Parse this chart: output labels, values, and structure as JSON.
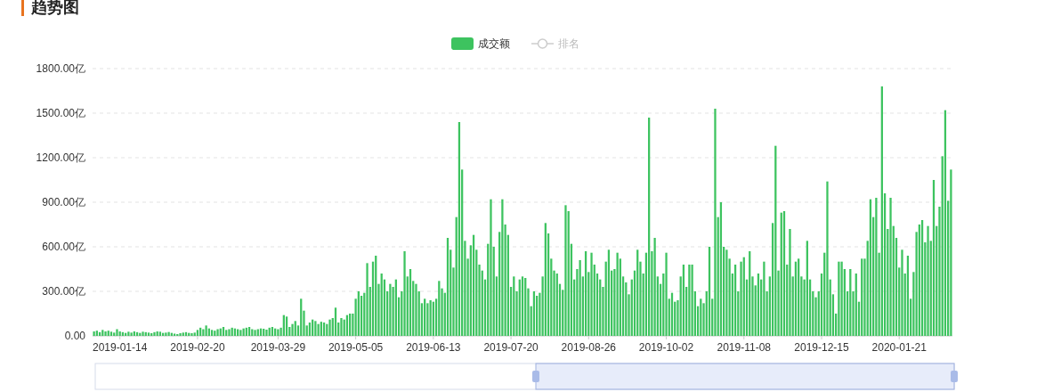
{
  "chart_data": {
    "type": "bar",
    "title": "趋势图",
    "categories": [
      null,
      null,
      null,
      null,
      null,
      null,
      null,
      null,
      null,
      "2019-01-14",
      null,
      null,
      null,
      null,
      null,
      null,
      null,
      null,
      null,
      null,
      null,
      null,
      null,
      null,
      null,
      null,
      null,
      null,
      null,
      null,
      null,
      null,
      null,
      null,
      null,
      null,
      "2019-02-20",
      null,
      null,
      null,
      null,
      null,
      null,
      null,
      null,
      null,
      null,
      null,
      null,
      null,
      null,
      null,
      null,
      null,
      null,
      null,
      null,
      null,
      null,
      null,
      null,
      null,
      null,
      null,
      "2019-03-29",
      null,
      null,
      null,
      null,
      null,
      null,
      null,
      null,
      null,
      null,
      null,
      null,
      null,
      null,
      null,
      null,
      null,
      null,
      null,
      null,
      null,
      null,
      null,
      null,
      null,
      null,
      "2019-05-05",
      null,
      null,
      null,
      null,
      null,
      null,
      null,
      null,
      null,
      null,
      null,
      null,
      null,
      null,
      null,
      null,
      null,
      null,
      null,
      null,
      null,
      null,
      null,
      null,
      null,
      null,
      "2019-06-13",
      null,
      null,
      null,
      null,
      null,
      null,
      null,
      null,
      null,
      null,
      null,
      null,
      null,
      null,
      null,
      null,
      null,
      null,
      null,
      null,
      null,
      null,
      null,
      null,
      null,
      null,
      "2019-07-20",
      null,
      null,
      null,
      null,
      null,
      null,
      null,
      null,
      null,
      null,
      null,
      null,
      null,
      null,
      null,
      null,
      null,
      null,
      null,
      null,
      null,
      null,
      null,
      null,
      null,
      null,
      "2019-08-26",
      null,
      null,
      null,
      null,
      null,
      null,
      null,
      null,
      null,
      null,
      null,
      null,
      null,
      null,
      null,
      null,
      null,
      null,
      null,
      null,
      null,
      null,
      null,
      null,
      null,
      null,
      "2019-10-02",
      null,
      null,
      null,
      null,
      null,
      null,
      null,
      null,
      null,
      null,
      null,
      null,
      null,
      null,
      null,
      null,
      null,
      null,
      null,
      null,
      null,
      null,
      null,
      null,
      null,
      null,
      "2019-11-08",
      null,
      null,
      null,
      null,
      null,
      null,
      null,
      null,
      null,
      null,
      null,
      null,
      null,
      null,
      null,
      null,
      null,
      null,
      null,
      null,
      null,
      null,
      null,
      null,
      null,
      null,
      "2019-12-15",
      null,
      null,
      null,
      null,
      null,
      null,
      null,
      null,
      null,
      null,
      null,
      null,
      null,
      null,
      null,
      null,
      null,
      null,
      null,
      null,
      null,
      null,
      null,
      null,
      null,
      null,
      "2020-01-21",
      null,
      null,
      null,
      null,
      null,
      null,
      null,
      null,
      null,
      null,
      null,
      null,
      null,
      null,
      null,
      null,
      null,
      null
    ],
    "series": [
      {
        "name": "成交额",
        "color": "#3dc35f",
        "values": [
          30,
          35,
          25,
          40,
          30,
          35,
          28,
          22,
          45,
          30,
          25,
          20,
          28,
          22,
          30,
          25,
          20,
          28,
          25,
          22,
          18,
          25,
          30,
          28,
          20,
          22,
          26,
          20,
          15,
          12,
          18,
          22,
          25,
          20,
          18,
          22,
          40,
          55,
          45,
          70,
          50,
          40,
          35,
          45,
          50,
          60,
          40,
          45,
          55,
          50,
          45,
          40,
          50,
          55,
          60,
          45,
          40,
          45,
          50,
          48,
          42,
          55,
          60,
          50,
          45,
          55,
          140,
          130,
          60,
          80,
          100,
          70,
          250,
          170,
          70,
          90,
          110,
          100,
          80,
          95,
          90,
          80,
          110,
          120,
          190,
          90,
          120,
          110,
          140,
          150,
          150,
          250,
          300,
          270,
          290,
          490,
          330,
          500,
          540,
          350,
          420,
          380,
          300,
          350,
          330,
          380,
          260,
          300,
          570,
          400,
          450,
          370,
          350,
          300,
          220,
          250,
          220,
          240,
          230,
          250,
          370,
          320,
          290,
          660,
          580,
          460,
          800,
          1440,
          1120,
          640,
          520,
          610,
          680,
          580,
          480,
          440,
          380,
          620,
          920,
          600,
          400,
          700,
          920,
          750,
          680,
          330,
          400,
          300,
          380,
          400,
          390,
          320,
          200,
          300,
          270,
          290,
          400,
          760,
          690,
          520,
          440,
          420,
          350,
          310,
          880,
          840,
          620,
          380,
          450,
          510,
          400,
          570,
          430,
          560,
          480,
          420,
          380,
          330,
          500,
          580,
          440,
          450,
          560,
          520,
          400,
          360,
          280,
          380,
          440,
          580,
          500,
          420,
          560,
          1470,
          570,
          660,
          400,
          350,
          420,
          560,
          250,
          290,
          230,
          240,
          400,
          480,
          330,
          480,
          480,
          300,
          200,
          250,
          220,
          300,
          600,
          250,
          1530,
          800,
          900,
          600,
          580,
          520,
          420,
          480,
          300,
          500,
          530,
          380,
          570,
          400,
          340,
          420,
          380,
          500,
          300,
          400,
          760,
          1280,
          440,
          830,
          840,
          480,
          720,
          400,
          500,
          520,
          400,
          380,
          640,
          380,
          300,
          260,
          300,
          420,
          560,
          1040,
          380,
          280,
          150,
          500,
          500,
          450,
          300,
          450,
          300,
          420,
          230,
          520,
          520,
          640,
          920,
          800,
          930,
          560,
          1680,
          960,
          720,
          930,
          740,
          660,
          460,
          580,
          420,
          540,
          250,
          430,
          700,
          750,
          780,
          630,
          740,
          640,
          1050,
          740,
          870,
          1210,
          1520,
          910,
          1120
        ]
      },
      {
        "name": "排名",
        "type": "line",
        "color": "#cccccc",
        "marker": "circle",
        "values": [
          null,
          null,
          null,
          null,
          null,
          null,
          null,
          null,
          null,
          null,
          null,
          null,
          null,
          null,
          null,
          null,
          null,
          null,
          null,
          null,
          null,
          null,
          null,
          null,
          null,
          null,
          null,
          null,
          null,
          null,
          null,
          null,
          null,
          null,
          null,
          null,
          null,
          null,
          null,
          null,
          null,
          null,
          null,
          null,
          null,
          null,
          null,
          null,
          null,
          null,
          null,
          null,
          null,
          null,
          null,
          null,
          null,
          null,
          null,
          null,
          null,
          null,
          null,
          null,
          null,
          null,
          null,
          null,
          null,
          null,
          null,
          null,
          null,
          null,
          null,
          null,
          null,
          null,
          null,
          null,
          null,
          null,
          null,
          null,
          null,
          null,
          null,
          null,
          null,
          null,
          null,
          null,
          null,
          null,
          null,
          null,
          null,
          null,
          null,
          null,
          null,
          null,
          null,
          null,
          null,
          null,
          null,
          null,
          null,
          null,
          null,
          null,
          null,
          null,
          null,
          null,
          null,
          null,
          null,
          null,
          null,
          null,
          null,
          null,
          null,
          null,
          null,
          null,
          null,
          null,
          null,
          null,
          null,
          null,
          null,
          null,
          null,
          null,
          null,
          null,
          null,
          null,
          null,
          null,
          null,
          null,
          null,
          null,
          null,
          null,
          null,
          null,
          null,
          null,
          null,
          null,
          null,
          null,
          null,
          null,
          null,
          null,
          null,
          null,
          null,
          null,
          null,
          null,
          null,
          null,
          null,
          null,
          null,
          null,
          null,
          null,
          null,
          null,
          null,
          null,
          null,
          null,
          null,
          null,
          null,
          null,
          null,
          null,
          null,
          null,
          null,
          null,
          null,
          null,
          null,
          null,
          null,
          null,
          null,
          null,
          null,
          null,
          null,
          null,
          null,
          null,
          null,
          null,
          null,
          null,
          null,
          null,
          null,
          null,
          null,
          null,
          null,
          null,
          null,
          null,
          null,
          null,
          null,
          null,
          null,
          null,
          null,
          null,
          null,
          null,
          null,
          null,
          null,
          null,
          null,
          null,
          null,
          null,
          null,
          null,
          null,
          null,
          null,
          null,
          null,
          null,
          null,
          null,
          null,
          null,
          null,
          null,
          null,
          null,
          null,
          null,
          null,
          null,
          null,
          null,
          null,
          null,
          null,
          null,
          null,
          null,
          null,
          null,
          null,
          null,
          null,
          null,
          null,
          null,
          null,
          null,
          null,
          null,
          null,
          null,
          null,
          null,
          null,
          null,
          null,
          null,
          null,
          null,
          null,
          null,
          null,
          null,
          null,
          null,
          null,
          null,
          null,
          null,
          null
        ]
      }
    ],
    "ylim": [
      0,
      1800
    ],
    "yticks": [
      {
        "value": 0,
        "label": "0.00"
      },
      {
        "value": 300,
        "label": "300.00亿"
      },
      {
        "value": 600,
        "label": "600.00亿"
      },
      {
        "value": 900,
        "label": "900.00亿"
      },
      {
        "value": 1200,
        "label": "1200.00亿"
      },
      {
        "value": 1500,
        "label": "1500.00亿"
      },
      {
        "value": 1800,
        "label": "1800.00亿"
      }
    ],
    "grid": "y",
    "legend": "top"
  }
}
